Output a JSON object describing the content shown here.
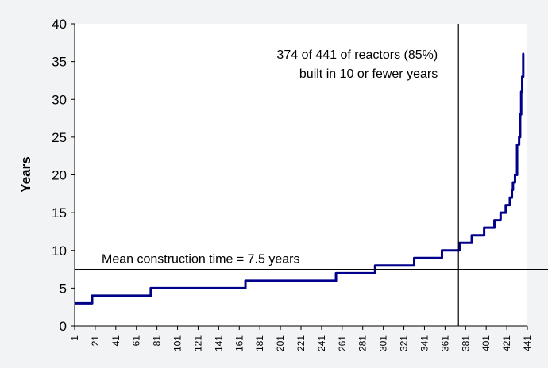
{
  "chart_data": {
    "type": "line",
    "title": "",
    "xlabel": "",
    "ylabel": "Years",
    "xlim": [
      1,
      441
    ],
    "ylim": [
      0,
      40
    ],
    "y_ticks": [
      0,
      5,
      10,
      15,
      20,
      25,
      30,
      35,
      40
    ],
    "x_ticks": [
      "1",
      "21",
      "41",
      "61",
      "81",
      "101",
      "121",
      "141",
      "161",
      "181",
      "201",
      "221",
      "241",
      "261",
      "281",
      "301",
      "321",
      "341",
      "361",
      "381",
      "401",
      "421",
      "441"
    ],
    "grid": false,
    "line_color": "#00008b",
    "steps": [
      {
        "from": 1,
        "to": 17,
        "y": 3
      },
      {
        "from": 18,
        "to": 74,
        "y": 4
      },
      {
        "from": 75,
        "to": 166,
        "y": 5
      },
      {
        "from": 167,
        "to": 254,
        "y": 6
      },
      {
        "from": 255,
        "to": 292,
        "y": 7
      },
      {
        "from": 293,
        "to": 330,
        "y": 8
      },
      {
        "from": 331,
        "to": 357,
        "y": 9
      },
      {
        "from": 358,
        "to": 374,
        "y": 10
      },
      {
        "from": 375,
        "to": 386,
        "y": 11
      },
      {
        "from": 387,
        "to": 398,
        "y": 12
      },
      {
        "from": 399,
        "to": 408,
        "y": 13
      },
      {
        "from": 409,
        "to": 414,
        "y": 14
      },
      {
        "from": 415,
        "to": 419,
        "y": 15
      },
      {
        "from": 420,
        "to": 423,
        "y": 16
      },
      {
        "from": 424,
        "to": 425,
        "y": 17
      },
      {
        "from": 426,
        "to": 426,
        "y": 18
      },
      {
        "from": 427,
        "to": 428,
        "y": 19
      },
      {
        "from": 429,
        "to": 430,
        "y": 20
      },
      {
        "from": 431,
        "to": 432,
        "y": 24
      },
      {
        "from": 433,
        "to": 433,
        "y": 25
      },
      {
        "from": 434,
        "to": 434,
        "y": 28
      },
      {
        "from": 435,
        "to": 435,
        "y": 31
      },
      {
        "from": 436,
        "to": 436,
        "y": 33
      },
      {
        "from": 437,
        "to": 437,
        "y": 36
      }
    ],
    "reference_lines": [
      {
        "orientation": "horizontal",
        "value": 7.5,
        "label": "Mean construction time = 7.5 years"
      },
      {
        "orientation": "vertical",
        "value": 374,
        "label_lines": [
          "374 of 441 of reactors (85%)",
          "built in 10 or fewer years"
        ]
      }
    ]
  }
}
